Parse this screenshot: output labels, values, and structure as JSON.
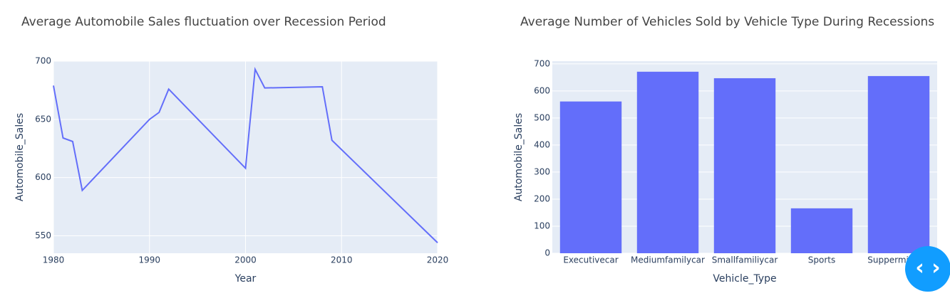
{
  "chart_data": [
    {
      "type": "line",
      "title": "Average Automobile Sales fluctuation over Recession Period",
      "x_label": "Year",
      "y_label": "Automobile_Sales",
      "x": [
        1980,
        1981,
        1982,
        1983,
        1990,
        1991,
        1992,
        2000,
        2001,
        2002,
        2008,
        2009,
        2020
      ],
      "series": [
        {
          "name": "Automobile_Sales",
          "color": "#636efa",
          "values": [
            679,
            634,
            631,
            589,
            650,
            656,
            676,
            608,
            693,
            677,
            678,
            632,
            544
          ]
        }
      ],
      "xlim": [
        1980,
        2020
      ],
      "xticks": [
        1980,
        1990,
        2000,
        2010,
        2020
      ],
      "ylim": [
        535,
        700
      ],
      "yticks": [
        550,
        600,
        650,
        700
      ],
      "grid": true
    },
    {
      "type": "bar",
      "title": "Average Number of Vehicles Sold by Vehicle Type During Recessions",
      "x_label": "Vehicle_Type",
      "y_label": "Automobile_Sales",
      "categories": [
        "Executivecar",
        "Mediumfamilycar",
        "Smallfamiliycar",
        "Sports",
        "Supperminicar"
      ],
      "values": [
        561,
        671,
        647,
        166,
        655
      ],
      "color": "#636efa",
      "ylim": [
        0,
        710
      ],
      "yticks": [
        0,
        100,
        200,
        300,
        400,
        500,
        600,
        700
      ],
      "grid": true
    }
  ]
}
